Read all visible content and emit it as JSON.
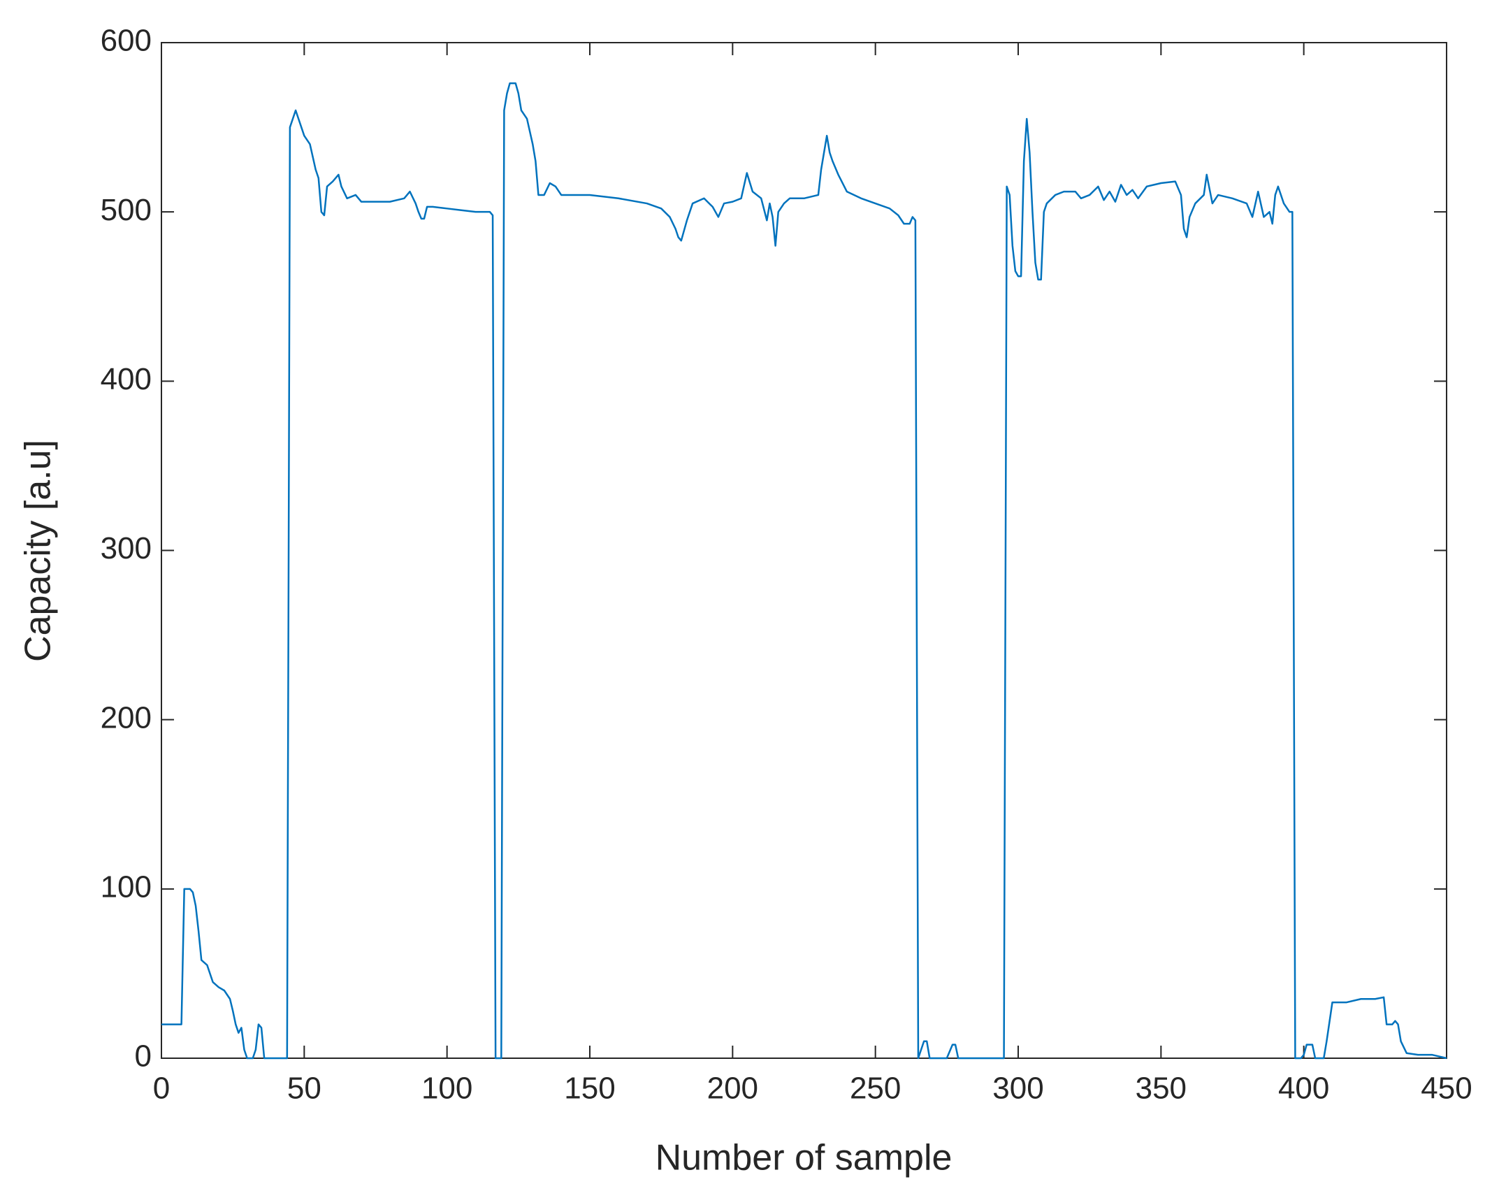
{
  "chart_data": {
    "type": "line",
    "xlabel": "Number of sample",
    "ylabel": "Capacity [a.u]",
    "xlim": [
      0,
      450
    ],
    "xticks": [
      0,
      50,
      100,
      150,
      200,
      250,
      300,
      350,
      400,
      450
    ],
    "ylim": [
      0,
      600
    ],
    "yticks": [
      0,
      100,
      200,
      300,
      400,
      500,
      600
    ],
    "grid": false,
    "color": "#0072bd",
    "x": [
      0,
      5,
      7,
      8,
      10,
      11,
      12,
      13,
      14,
      16,
      18,
      20,
      22,
      24,
      25,
      26,
      27,
      28,
      29,
      30,
      32,
      33,
      34,
      35,
      36,
      40,
      44,
      45,
      47,
      48,
      50,
      52,
      54,
      55,
      56,
      57,
      58,
      60,
      62,
      63,
      65,
      68,
      70,
      75,
      80,
      85,
      87,
      89,
      90,
      91,
      92,
      93,
      95,
      100,
      105,
      110,
      115,
      116,
      117,
      118,
      119,
      120,
      121,
      122,
      124,
      125,
      126,
      128,
      130,
      131,
      132,
      134,
      136,
      138,
      140,
      150,
      160,
      170,
      175,
      178,
      180,
      181,
      182,
      184,
      186,
      190,
      193,
      195,
      197,
      200,
      203,
      205,
      207,
      210,
      212,
      213,
      214,
      215,
      216,
      218,
      220,
      225,
      230,
      231,
      233,
      234,
      235,
      237,
      240,
      245,
      250,
      255,
      258,
      260,
      262,
      263,
      264,
      265,
      267,
      268,
      269,
      275,
      277,
      278,
      279,
      285,
      295,
      296,
      297,
      298,
      299,
      300,
      301,
      302,
      303,
      304,
      305,
      306,
      307,
      308,
      309,
      310,
      313,
      316,
      320,
      322,
      325,
      328,
      330,
      332,
      334,
      336,
      338,
      340,
      342,
      345,
      350,
      355,
      357,
      358,
      359,
      360,
      362,
      365,
      366,
      368,
      370,
      375,
      380,
      382,
      384,
      386,
      388,
      389,
      390,
      391,
      393,
      395,
      396,
      397,
      399,
      400,
      401,
      403,
      404,
      407,
      408,
      410,
      415,
      420,
      425,
      428,
      429,
      431,
      432,
      433,
      434,
      436,
      440,
      445,
      450
    ],
    "values": [
      20,
      20,
      20,
      100,
      100,
      98,
      90,
      75,
      58,
      55,
      45,
      42,
      40,
      35,
      28,
      20,
      15,
      18,
      5,
      0,
      0,
      5,
      20,
      18,
      0,
      0,
      0,
      550,
      560,
      555,
      545,
      540,
      525,
      520,
      500,
      498,
      515,
      518,
      522,
      515,
      508,
      510,
      506,
      506,
      506,
      508,
      512,
      505,
      500,
      496,
      496,
      503,
      503,
      502,
      501,
      500,
      500,
      498,
      0,
      0,
      0,
      560,
      570,
      576,
      576,
      570,
      560,
      555,
      540,
      530,
      510,
      510,
      517,
      515,
      510,
      510,
      508,
      505,
      502,
      497,
      490,
      485,
      483,
      495,
      505,
      508,
      503,
      497,
      505,
      506,
      508,
      523,
      512,
      508,
      495,
      505,
      497,
      480,
      500,
      505,
      508,
      508,
      510,
      525,
      545,
      535,
      530,
      522,
      512,
      508,
      505,
      502,
      498,
      493,
      493,
      497,
      495,
      0,
      10,
      10,
      0,
      0,
      8,
      8,
      0,
      0,
      0,
      515,
      510,
      480,
      465,
      462,
      462,
      530,
      555,
      535,
      500,
      470,
      460,
      460,
      500,
      505,
      510,
      512,
      512,
      508,
      510,
      515,
      507,
      512,
      506,
      516,
      510,
      513,
      508,
      515,
      517,
      518,
      510,
      490,
      485,
      497,
      505,
      510,
      522,
      505,
      510,
      508,
      505,
      497,
      512,
      497,
      500,
      493,
      510,
      515,
      505,
      500,
      500,
      0,
      0,
      2,
      8,
      8,
      0,
      0,
      10,
      33,
      33,
      35,
      35,
      36,
      20,
      20,
      22,
      20,
      10,
      3,
      2,
      2,
      0
    ]
  }
}
